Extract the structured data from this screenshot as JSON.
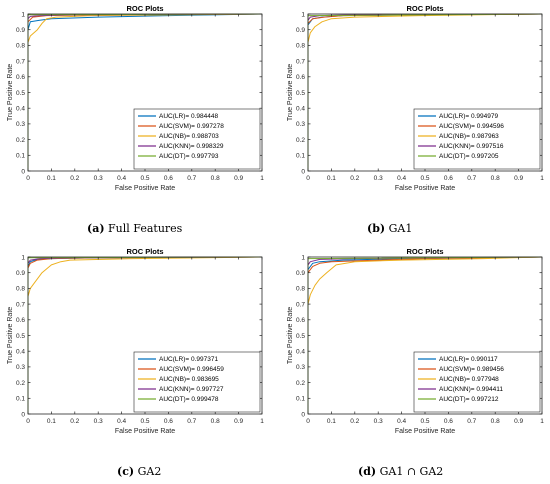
{
  "captions": [
    {
      "letter": "(a)",
      "text": "Full Features"
    },
    {
      "letter": "(b)",
      "text": "GA1"
    },
    {
      "letter": "(c)",
      "text": "GA2"
    },
    {
      "letter": "(d)",
      "text": "GA1 ∩ GA2"
    }
  ],
  "colors": {
    "LR": "#0072bd",
    "SVM": "#d95319",
    "NB": "#edb120",
    "KNN": "#7e2f8e",
    "DT": "#77ac30"
  },
  "chart_data": [
    {
      "type": "line",
      "title": "ROC Plots",
      "xlabel": "False Positive Rate",
      "ylabel": "True Positive Rate",
      "xlim": [
        0,
        1
      ],
      "ylim": [
        0,
        1
      ],
      "xticks": [
        "0",
        "0.1",
        "0.2",
        "0.3",
        "0.4",
        "0.5",
        "0.6",
        "0.7",
        "0.8",
        "0.9",
        "1"
      ],
      "yticks": [
        "0",
        "0.1",
        "0.2",
        "0.3",
        "0.4",
        "0.5",
        "0.6",
        "0.7",
        "0.8",
        "0.9",
        "1"
      ],
      "legend_position": "bottom-right",
      "series": [
        {
          "name": "AUC(LR)= 0.984448",
          "key": "LR",
          "points": [
            [
              0,
              0
            ],
            [
              0,
              0.9
            ],
            [
              0.01,
              0.95
            ],
            [
              0.05,
              0.96
            ],
            [
              0.1,
              0.97
            ],
            [
              0.3,
              0.98
            ],
            [
              0.6,
              0.99
            ],
            [
              1,
              1
            ]
          ]
        },
        {
          "name": "AUC(SVM)= 0.997278",
          "key": "SVM",
          "points": [
            [
              0,
              0
            ],
            [
              0,
              0.95
            ],
            [
              0.02,
              0.98
            ],
            [
              0.08,
              0.99
            ],
            [
              0.3,
              0.995
            ],
            [
              1,
              1
            ]
          ]
        },
        {
          "name": "AUC(NB)= 0.988703",
          "key": "NB",
          "points": [
            [
              0,
              0
            ],
            [
              0,
              0.82
            ],
            [
              0.01,
              0.86
            ],
            [
              0.04,
              0.9
            ],
            [
              0.06,
              0.94
            ],
            [
              0.08,
              0.97
            ],
            [
              0.12,
              0.98
            ],
            [
              0.27,
              0.99
            ],
            [
              1,
              1
            ]
          ]
        },
        {
          "name": "AUC(KNN)= 0.998329",
          "key": "KNN",
          "points": [
            [
              0,
              0
            ],
            [
              0,
              0.97
            ],
            [
              0.01,
              0.985
            ],
            [
              0.05,
              0.99
            ],
            [
              0.2,
              0.995
            ],
            [
              1,
              1
            ]
          ]
        },
        {
          "name": "AUC(DT)= 0.997793",
          "key": "DT",
          "points": [
            [
              0,
              0
            ],
            [
              0,
              0.995
            ],
            [
              1,
              1
            ]
          ]
        }
      ]
    },
    {
      "type": "line",
      "title": "ROC Plots",
      "xlabel": "False Positive Rate",
      "ylabel": "True Positive Rate",
      "xlim": [
        0,
        1
      ],
      "ylim": [
        0,
        1
      ],
      "xticks": [
        "0",
        "0.1",
        "0.2",
        "0.3",
        "0.4",
        "0.5",
        "0.6",
        "0.7",
        "0.8",
        "0.9",
        "1"
      ],
      "yticks": [
        "0",
        "0.1",
        "0.2",
        "0.3",
        "0.4",
        "0.5",
        "0.6",
        "0.7",
        "0.8",
        "0.9",
        "1"
      ],
      "legend_position": "bottom-right",
      "series": [
        {
          "name": "AUC(LR)= 0.994979",
          "key": "LR",
          "points": [
            [
              0,
              0
            ],
            [
              0,
              0.93
            ],
            [
              0.02,
              0.97
            ],
            [
              0.06,
              0.98
            ],
            [
              0.15,
              0.99
            ],
            [
              0.5,
              0.995
            ],
            [
              1,
              1
            ]
          ]
        },
        {
          "name": "AUC(SVM)= 0.994596",
          "key": "SVM",
          "points": [
            [
              0,
              0
            ],
            [
              0,
              0.94
            ],
            [
              0.02,
              0.97
            ],
            [
              0.07,
              0.98
            ],
            [
              0.15,
              0.99
            ],
            [
              0.5,
              0.995
            ],
            [
              1,
              1
            ]
          ]
        },
        {
          "name": "AUC(NB)= 0.987963",
          "key": "NB",
          "points": [
            [
              0,
              0
            ],
            [
              0,
              0.82
            ],
            [
              0.01,
              0.88
            ],
            [
              0.03,
              0.92
            ],
            [
              0.06,
              0.95
            ],
            [
              0.1,
              0.97
            ],
            [
              0.2,
              0.98
            ],
            [
              0.48,
              0.99
            ],
            [
              1,
              1
            ]
          ]
        },
        {
          "name": "AUC(KNN)= 0.997516",
          "key": "KNN",
          "points": [
            [
              0,
              0
            ],
            [
              0,
              0.96
            ],
            [
              0.01,
              0.98
            ],
            [
              0.05,
              0.99
            ],
            [
              0.2,
              0.995
            ],
            [
              1,
              1
            ]
          ]
        },
        {
          "name": "AUC(DT)= 0.997205",
          "key": "DT",
          "points": [
            [
              0,
              0
            ],
            [
              0,
              0.99
            ],
            [
              1,
              1
            ]
          ]
        }
      ]
    },
    {
      "type": "line",
      "title": "ROC Plots",
      "xlabel": "False Positive Rate",
      "ylabel": "True Positive Rate",
      "xlim": [
        0,
        1
      ],
      "ylim": [
        0,
        1
      ],
      "xticks": [
        "0",
        "0.1",
        "0.2",
        "0.3",
        "0.4",
        "0.5",
        "0.6",
        "0.7",
        "0.8",
        "0.9",
        "1"
      ],
      "yticks": [
        "0",
        "0.1",
        "0.2",
        "0.3",
        "0.4",
        "0.5",
        "0.6",
        "0.7",
        "0.8",
        "0.9",
        "1"
      ],
      "legend_position": "bottom-right",
      "series": [
        {
          "name": "AUC(LR)= 0.997371",
          "key": "LR",
          "points": [
            [
              0,
              0
            ],
            [
              0,
              0.94
            ],
            [
              0.01,
              0.97
            ],
            [
              0.04,
              0.985
            ],
            [
              0.1,
              0.99
            ],
            [
              0.3,
              0.995
            ],
            [
              1,
              1
            ]
          ]
        },
        {
          "name": "AUC(SVM)= 0.996459",
          "key": "SVM",
          "points": [
            [
              0,
              0
            ],
            [
              0,
              0.93
            ],
            [
              0.01,
              0.96
            ],
            [
              0.04,
              0.98
            ],
            [
              0.1,
              0.99
            ],
            [
              0.3,
              0.995
            ],
            [
              1,
              1
            ]
          ]
        },
        {
          "name": "AUC(NB)= 0.983695",
          "key": "NB",
          "points": [
            [
              0,
              0
            ],
            [
              0,
              0.75
            ],
            [
              0.01,
              0.8
            ],
            [
              0.03,
              0.84
            ],
            [
              0.06,
              0.9
            ],
            [
              0.1,
              0.95
            ],
            [
              0.14,
              0.97
            ],
            [
              0.18,
              0.98
            ],
            [
              0.45,
              0.99
            ],
            [
              1,
              1
            ]
          ]
        },
        {
          "name": "AUC(KNN)= 0.997727",
          "key": "KNN",
          "points": [
            [
              0,
              0
            ],
            [
              0,
              0.96
            ],
            [
              0.01,
              0.98
            ],
            [
              0.05,
              0.99
            ],
            [
              0.2,
              0.995
            ],
            [
              1,
              1
            ]
          ]
        },
        {
          "name": "AUC(DT)= 0.999478",
          "key": "DT",
          "points": [
            [
              0,
              0
            ],
            [
              0,
              0.995
            ],
            [
              1,
              1
            ]
          ]
        }
      ]
    },
    {
      "type": "line",
      "title": "ROC Plots",
      "xlabel": "False Positive Rate",
      "ylabel": "True Positive Rate",
      "xlim": [
        0,
        1
      ],
      "ylim": [
        0,
        1
      ],
      "xticks": [
        "0",
        "0.1",
        "0.2",
        "0.3",
        "0.4",
        "0.5",
        "0.6",
        "0.7",
        "0.8",
        "0.9",
        "1"
      ],
      "yticks": [
        "0",
        "0.1",
        "0.2",
        "0.3",
        "0.4",
        "0.5",
        "0.6",
        "0.7",
        "0.8",
        "0.9",
        "1"
      ],
      "legend_position": "bottom-right",
      "series": [
        {
          "name": "AUC(LR)= 0.990117",
          "key": "LR",
          "points": [
            [
              0,
              0
            ],
            [
              0,
              0.92
            ],
            [
              0.02,
              0.96
            ],
            [
              0.05,
              0.97
            ],
            [
              0.15,
              0.98
            ],
            [
              0.4,
              0.99
            ],
            [
              1,
              1
            ]
          ]
        },
        {
          "name": "AUC(SVM)= 0.989456",
          "key": "SVM",
          "points": [
            [
              0,
              0
            ],
            [
              0,
              0.9
            ],
            [
              0.02,
              0.94
            ],
            [
              0.05,
              0.96
            ],
            [
              0.1,
              0.97
            ],
            [
              0.3,
              0.98
            ],
            [
              0.5,
              0.99
            ],
            [
              1,
              1
            ]
          ]
        },
        {
          "name": "AUC(NB)= 0.977948",
          "key": "NB",
          "points": [
            [
              0,
              0
            ],
            [
              0,
              0.7
            ],
            [
              0.01,
              0.76
            ],
            [
              0.03,
              0.82
            ],
            [
              0.05,
              0.86
            ],
            [
              0.08,
              0.9
            ],
            [
              0.12,
              0.95
            ],
            [
              0.2,
              0.97
            ],
            [
              0.4,
              0.98
            ],
            [
              0.75,
              0.99
            ],
            [
              1,
              1
            ]
          ]
        },
        {
          "name": "AUC(KNN)= 0.994411",
          "key": "KNN",
          "points": [
            [
              0,
              0
            ],
            [
              0,
              0.95
            ],
            [
              0.01,
              0.97
            ],
            [
              0.05,
              0.985
            ],
            [
              0.2,
              0.99
            ],
            [
              1,
              1
            ]
          ]
        },
        {
          "name": "AUC(DT)= 0.997212",
          "key": "DT",
          "points": [
            [
              0,
              0
            ],
            [
              0,
              0.99
            ],
            [
              1,
              1
            ]
          ]
        }
      ]
    }
  ]
}
